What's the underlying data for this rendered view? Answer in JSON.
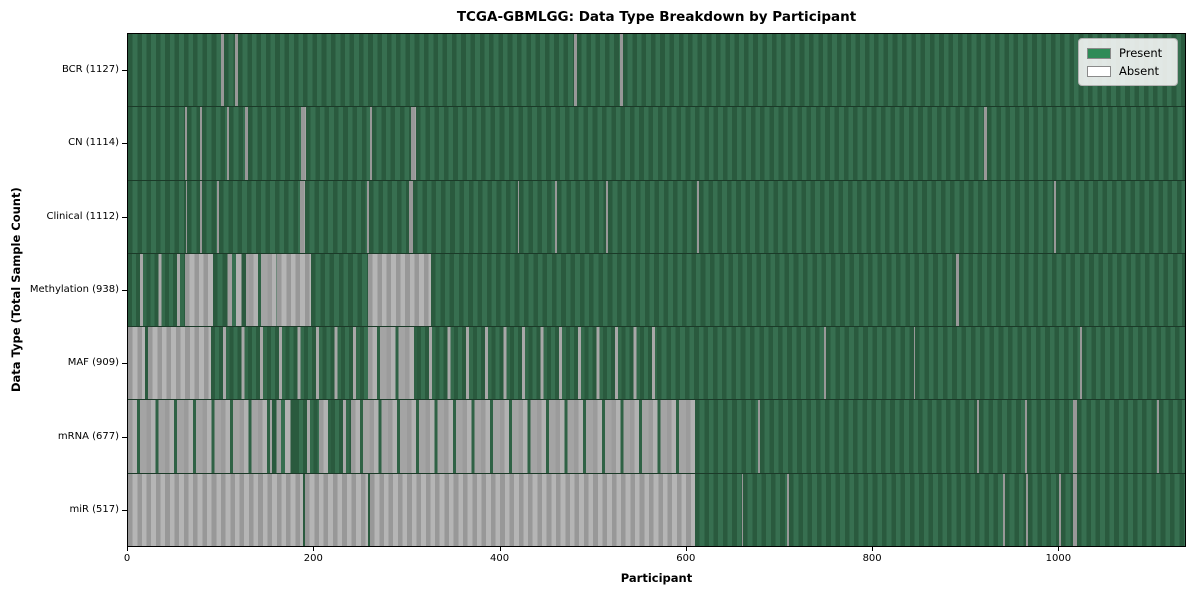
{
  "title": "TCGA-GBMLGG: Data Type Breakdown by Participant",
  "x_axis_title": "Participant",
  "y_axis_title": "Data Type (Total Sample Count)",
  "legend": {
    "items": [
      {
        "label": "Present",
        "color": "#2e8b57"
      },
      {
        "label": "Absent",
        "color": "#ffffff"
      }
    ]
  },
  "chart_data": {
    "type": "heatmap",
    "title": "TCGA-GBMLGG: Data Type Breakdown by Participant",
    "xlabel": "Participant",
    "ylabel": "Data Type (Total Sample Count)",
    "x_ticks": [
      0,
      200,
      400,
      600,
      800,
      1000
    ],
    "x_max": 1137,
    "legend_position": "upper right",
    "legend_entries": [
      "Present",
      "Absent"
    ],
    "present_color": "#2e8b57",
    "absent_color": "#ffffff",
    "grid": false,
    "rows": [
      {
        "name": "BCR",
        "label": "BCR (1127)",
        "count": 1127,
        "segments": [
          [
            0,
            100,
            "present"
          ],
          [
            100,
            103,
            "absent"
          ],
          [
            103,
            115,
            "present"
          ],
          [
            115,
            118,
            "absent"
          ],
          [
            118,
            480,
            "present"
          ],
          [
            480,
            483,
            "absent"
          ],
          [
            483,
            529,
            "present"
          ],
          [
            529,
            532,
            "absent"
          ],
          [
            532,
            1137,
            "present"
          ]
        ]
      },
      {
        "name": "CN",
        "label": "CN (1114)",
        "count": 1114,
        "segments": [
          [
            0,
            61,
            "present"
          ],
          [
            61,
            64,
            "absent"
          ],
          [
            64,
            77,
            "present"
          ],
          [
            77,
            80,
            "absent"
          ],
          [
            80,
            106,
            "present"
          ],
          [
            106,
            109,
            "absent"
          ],
          [
            109,
            126,
            "present"
          ],
          [
            126,
            129,
            "absent"
          ],
          [
            129,
            186,
            "present"
          ],
          [
            186,
            191,
            "absent"
          ],
          [
            191,
            260,
            "present"
          ],
          [
            260,
            263,
            "absent"
          ],
          [
            263,
            304,
            "present"
          ],
          [
            304,
            310,
            "absent"
          ],
          [
            310,
            921,
            "present"
          ],
          [
            921,
            924,
            "absent"
          ],
          [
            924,
            1137,
            "present"
          ]
        ]
      },
      {
        "name": "Clinical",
        "label": "Clinical (1112)",
        "count": 1112,
        "segments": [
          [
            0,
            62,
            "present"
          ],
          [
            62,
            64,
            "absent"
          ],
          [
            64,
            77,
            "present"
          ],
          [
            77,
            80,
            "absent"
          ],
          [
            80,
            96,
            "present"
          ],
          [
            96,
            98,
            "absent"
          ],
          [
            98,
            185,
            "present"
          ],
          [
            185,
            190,
            "absent"
          ],
          [
            190,
            257,
            "present"
          ],
          [
            257,
            259,
            "absent"
          ],
          [
            259,
            302,
            "present"
          ],
          [
            302,
            307,
            "absent"
          ],
          [
            307,
            419,
            "present"
          ],
          [
            419,
            421,
            "absent"
          ],
          [
            421,
            459,
            "present"
          ],
          [
            459,
            461,
            "absent"
          ],
          [
            461,
            514,
            "present"
          ],
          [
            514,
            516,
            "absent"
          ],
          [
            516,
            612,
            "present"
          ],
          [
            612,
            614,
            "absent"
          ],
          [
            614,
            996,
            "present"
          ],
          [
            996,
            998,
            "absent"
          ],
          [
            998,
            1137,
            "present"
          ]
        ]
      },
      {
        "name": "Methylation",
        "label": "Methylation (938)",
        "count": 938,
        "segments": [
          [
            0,
            61,
            "mixed_present"
          ],
          [
            61,
            91,
            "absent"
          ],
          [
            91,
            102,
            "present"
          ],
          [
            102,
            130,
            "mixed"
          ],
          [
            130,
            160,
            "mixed_absent"
          ],
          [
            160,
            197,
            "absent"
          ],
          [
            197,
            258,
            "present"
          ],
          [
            258,
            326,
            "absent"
          ],
          [
            326,
            891,
            "present"
          ],
          [
            891,
            894,
            "absent"
          ],
          [
            894,
            1137,
            "present"
          ]
        ]
      },
      {
        "name": "MAF",
        "label": "MAF (909)",
        "count": 909,
        "segments": [
          [
            0,
            18,
            "absent"
          ],
          [
            18,
            22,
            "present"
          ],
          [
            22,
            89,
            "absent"
          ],
          [
            89,
            258,
            "mixed_present"
          ],
          [
            258,
            311,
            "mixed_absent"
          ],
          [
            311,
            569,
            "mixed_present"
          ],
          [
            569,
            749,
            "present"
          ],
          [
            749,
            751,
            "absent"
          ],
          [
            751,
            845,
            "present"
          ],
          [
            845,
            847,
            "absent"
          ],
          [
            847,
            1024,
            "present"
          ],
          [
            1024,
            1026,
            "absent"
          ],
          [
            1026,
            1137,
            "present"
          ]
        ]
      },
      {
        "name": "mRNA",
        "label": "mRNA (677)",
        "count": 677,
        "segments": [
          [
            0,
            155,
            "mixed_absent"
          ],
          [
            155,
            180,
            "mixed"
          ],
          [
            180,
            205,
            "mixed_present"
          ],
          [
            205,
            218,
            "mixed_absent"
          ],
          [
            218,
            240,
            "mixed_present"
          ],
          [
            240,
            610,
            "mixed_absent"
          ],
          [
            610,
            678,
            "present"
          ],
          [
            678,
            680,
            "absent"
          ],
          [
            680,
            913,
            "present"
          ],
          [
            913,
            915,
            "absent"
          ],
          [
            915,
            965,
            "present"
          ],
          [
            965,
            967,
            "absent"
          ],
          [
            967,
            1017,
            "present"
          ],
          [
            1017,
            1021,
            "absent"
          ],
          [
            1021,
            1107,
            "present"
          ],
          [
            1107,
            1109,
            "absent"
          ],
          [
            1109,
            1137,
            "present"
          ]
        ]
      },
      {
        "name": "miR",
        "label": "miR (517)",
        "count": 517,
        "segments": [
          [
            0,
            188,
            "absent"
          ],
          [
            188,
            190,
            "present"
          ],
          [
            190,
            258,
            "absent"
          ],
          [
            258,
            260,
            "present"
          ],
          [
            260,
            610,
            "absent"
          ],
          [
            610,
            660,
            "present"
          ],
          [
            660,
            662,
            "absent"
          ],
          [
            662,
            709,
            "present"
          ],
          [
            709,
            711,
            "absent"
          ],
          [
            711,
            941,
            "present"
          ],
          [
            941,
            943,
            "absent"
          ],
          [
            943,
            966,
            "present"
          ],
          [
            966,
            968,
            "absent"
          ],
          [
            968,
            1002,
            "present"
          ],
          [
            1002,
            1004,
            "absent"
          ],
          [
            1004,
            1017,
            "present"
          ],
          [
            1017,
            1021,
            "absent"
          ],
          [
            1021,
            1137,
            "present"
          ]
        ]
      }
    ]
  }
}
